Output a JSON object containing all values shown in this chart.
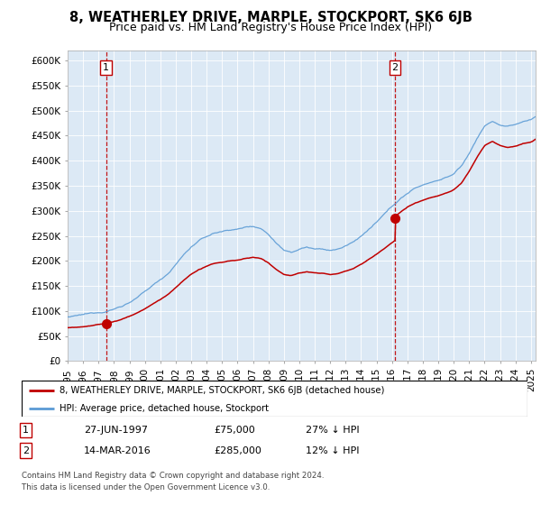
{
  "title": "8, WEATHERLEY DRIVE, MARPLE, STOCKPORT, SK6 6JB",
  "subtitle": "Price paid vs. HM Land Registry's House Price Index (HPI)",
  "ylim": [
    0,
    620000
  ],
  "yticks": [
    0,
    50000,
    100000,
    150000,
    200000,
    250000,
    300000,
    350000,
    400000,
    450000,
    500000,
    550000,
    600000
  ],
  "ytick_labels": [
    "£0",
    "£50K",
    "£100K",
    "£150K",
    "£200K",
    "£250K",
    "£300K",
    "£350K",
    "£400K",
    "£450K",
    "£500K",
    "£550K",
    "£600K"
  ],
  "hpi_color": "#5b9bd5",
  "price_color": "#c00000",
  "marker_color": "#c00000",
  "dashed_line_color": "#c00000",
  "background_color": "#ffffff",
  "plot_bg_color": "#dce9f5",
  "grid_color": "#ffffff",
  "purchase1_year": 1997.49,
  "purchase1_price": 75000,
  "purchase1_label": "1",
  "purchase2_year": 2016.2,
  "purchase2_price": 285000,
  "purchase2_label": "2",
  "legend_line1": "8, WEATHERLEY DRIVE, MARPLE, STOCKPORT, SK6 6JB (detached house)",
  "legend_line2": "HPI: Average price, detached house, Stockport",
  "table_row1": [
    "1",
    "27-JUN-1997",
    "£75,000",
    "27% ↓ HPI"
  ],
  "table_row2": [
    "2",
    "14-MAR-2016",
    "£285,000",
    "12% ↓ HPI"
  ],
  "footnote": "Contains HM Land Registry data © Crown copyright and database right 2024.\nThis data is licensed under the Open Government Licence v3.0.",
  "title_fontsize": 10.5,
  "subtitle_fontsize": 9,
  "tick_fontsize": 7.5
}
